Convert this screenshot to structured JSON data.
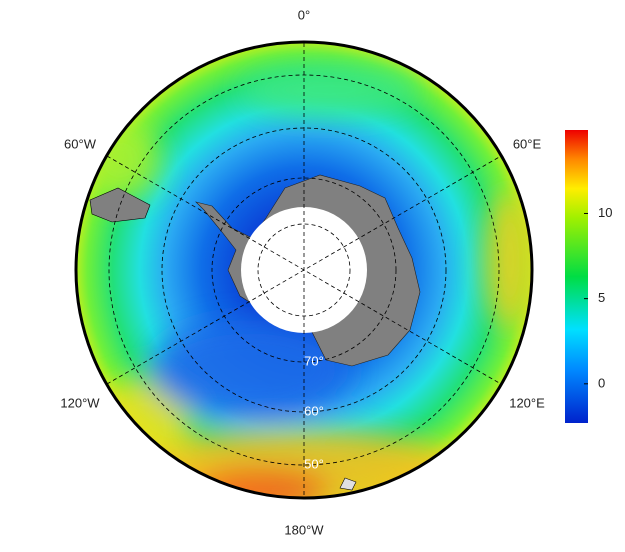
{
  "map": {
    "longitude_labels": [
      "0°",
      "60°E",
      "120°E",
      "180°W",
      "120°W",
      "60°W"
    ],
    "latitude_labels": [
      "70°",
      "60°",
      "50°"
    ]
  },
  "colorbar": {
    "lim": [
      -2.3,
      14.9
    ],
    "ticks": [
      0,
      5,
      10
    ]
  }
}
